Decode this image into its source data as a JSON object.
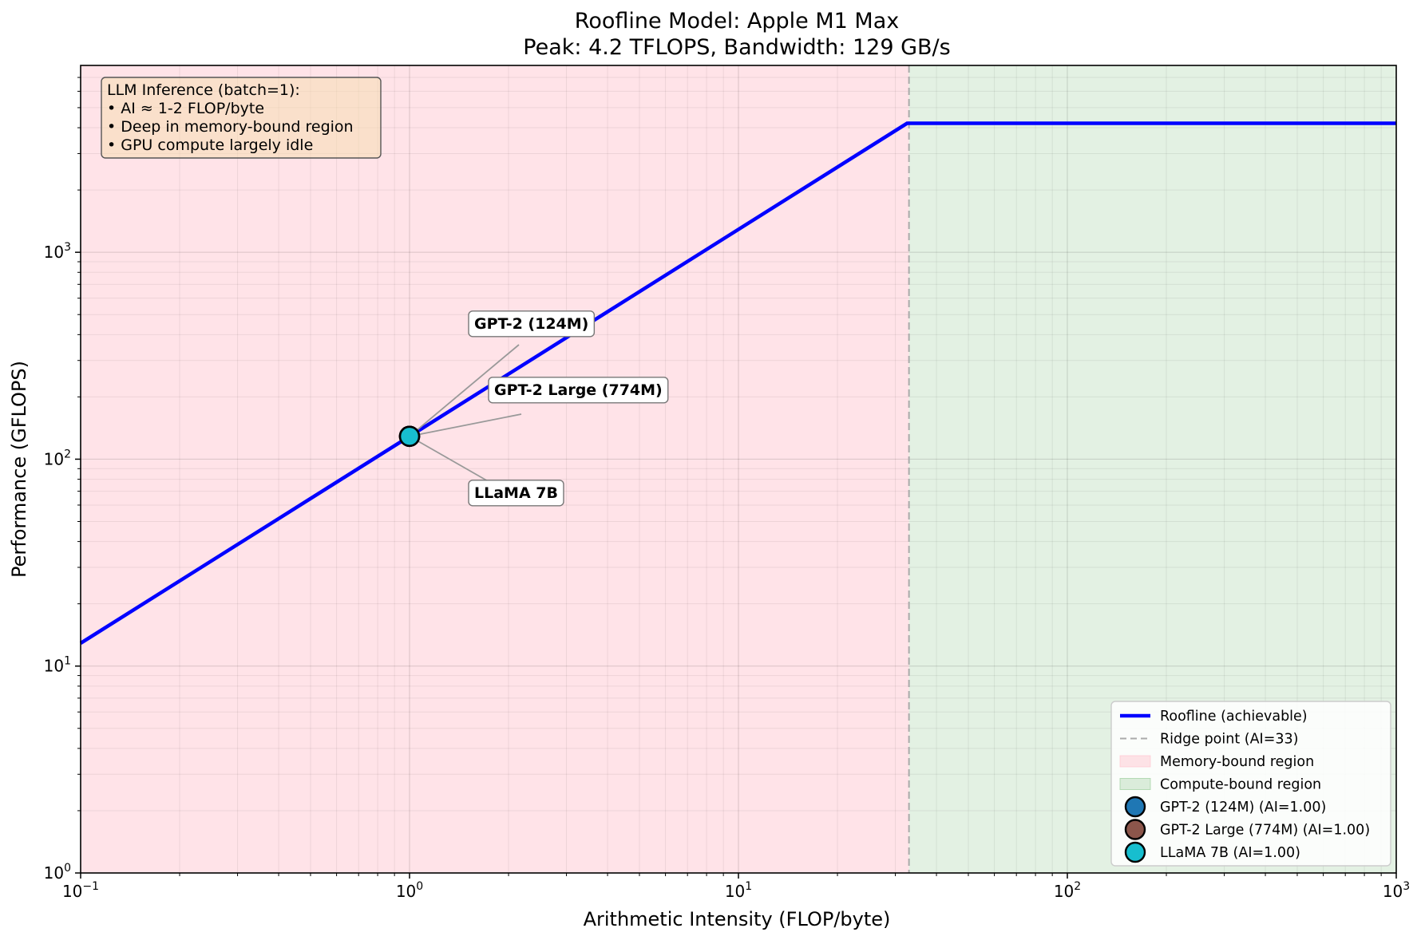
{
  "chart_data": {
    "type": "line",
    "title": "Roofline Model: Apple M1 Max",
    "subtitle": "Peak: 4.2 TFLOPS, Bandwidth: 129 GB/s",
    "xlabel": "Arithmetic Intensity (FLOP/byte)",
    "ylabel": "Performance (GFLOPS)",
    "xscale": "log",
    "yscale": "log",
    "xlim": [
      0.1,
      1000
    ],
    "ylim": [
      1,
      8000
    ],
    "grid": "major and minor",
    "x_ticks": [
      {
        "value": 0.1,
        "base": "10",
        "exp": "−1"
      },
      {
        "value": 1,
        "base": "10",
        "exp": "0"
      },
      {
        "value": 10,
        "base": "10",
        "exp": "1"
      },
      {
        "value": 100,
        "base": "10",
        "exp": "2"
      },
      {
        "value": 1000,
        "base": "10",
        "exp": "3"
      }
    ],
    "y_ticks": [
      {
        "value": 1,
        "base": "10",
        "exp": "0"
      },
      {
        "value": 10,
        "base": "10",
        "exp": "1"
      },
      {
        "value": 100,
        "base": "10",
        "exp": "2"
      },
      {
        "value": 1000,
        "base": "10",
        "exp": "3"
      }
    ],
    "roofline": {
      "bandwidth_gbs": 129,
      "peak_gflops": 4200,
      "ridge_ai": 33,
      "color": "#0000ff"
    },
    "regions": {
      "memory_color": "#ffc0cb",
      "compute_color": "#90c890"
    },
    "points": [
      {
        "label": "GPT-2 (124M)",
        "x": 1.0,
        "y": 129,
        "color": "#1f77b4"
      },
      {
        "label": "GPT-2 Large (774M)",
        "x": 1.0,
        "y": 129,
        "color": "#8c564b"
      },
      {
        "label": "LLaMA 7B",
        "x": 1.0,
        "y": 129,
        "color": "#17becf"
      }
    ],
    "legend": {
      "position": "lower right",
      "entries": [
        {
          "label": "Roofline (achievable)",
          "kind": "line",
          "color": "#0000ff"
        },
        {
          "label": "Ridge point (AI=33)",
          "kind": "dashed",
          "color": "#aaaaaa"
        },
        {
          "label": "Memory-bound region",
          "kind": "patch",
          "color": "#ffc0cb"
        },
        {
          "label": "Compute-bound region",
          "kind": "patch",
          "color": "#90c890"
        },
        {
          "label": "GPT-2 (124M) (AI=1.00)",
          "kind": "marker",
          "color": "#1f77b4"
        },
        {
          "label": "GPT-2 Large (774M) (AI=1.00)",
          "kind": "marker",
          "color": "#8c564b"
        },
        {
          "label": "LLaMA 7B (AI=1.00)",
          "kind": "marker",
          "color": "#17becf"
        }
      ]
    },
    "info_box": [
      "LLM Inference (batch=1):",
      "• AI ≈ 1-2 FLOP/byte",
      "• Deep in memory-bound region",
      "• GPU compute largely idle"
    ]
  }
}
